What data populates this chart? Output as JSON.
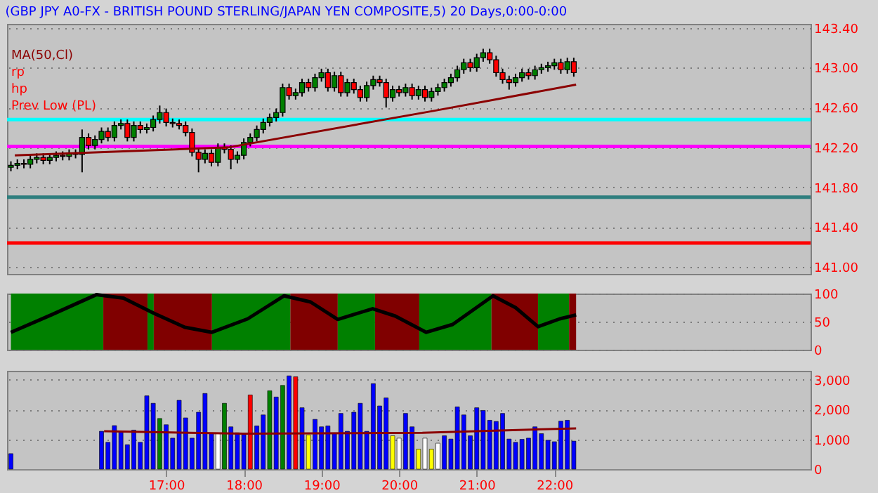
{
  "chart_data": [
    {
      "type": "candlestick",
      "title": "(GBP JPY A0-FX - BRITISH POUND STERLING/JAPAN YEN COMPOSITE,5) 20 Days,0:00-0:00",
      "x": [
        15,
        15.083,
        15.167,
        15.25,
        15.333,
        15.417,
        15.5,
        15.583,
        15.667,
        15.75,
        15.833,
        15.917,
        16,
        16.083,
        16.167,
        16.25,
        16.333,
        16.417,
        16.5,
        16.583,
        16.667,
        16.75,
        16.833,
        16.917,
        17,
        17.083,
        17.167,
        17.25,
        17.333,
        17.417,
        17.5,
        17.583,
        17.667,
        17.75,
        17.833,
        17.917,
        18,
        18.083,
        18.167,
        18.25,
        18.333,
        18.417,
        18.5,
        18.583,
        18.667,
        18.75,
        18.833,
        18.917,
        19,
        19.083,
        19.167,
        19.25,
        19.333,
        19.417,
        19.5,
        19.583,
        19.667,
        19.75,
        19.833,
        19.917,
        20,
        20.083,
        20.167,
        20.25,
        20.333,
        20.417,
        20.5,
        20.583,
        20.667,
        20.75,
        20.833,
        20.917,
        21,
        21.083,
        21.167,
        21.25,
        21.333,
        21.417,
        21.5,
        21.583,
        21.667,
        21.75,
        21.833,
        21.917,
        22,
        22.083,
        22.167,
        22.25
      ],
      "ohlc": [
        [
          142.0,
          142.06,
          141.96,
          142.02
        ],
        [
          142.02,
          142.08,
          141.98,
          142.04
        ],
        [
          142.04,
          142.08,
          141.99,
          142.03
        ],
        [
          142.03,
          142.12,
          141.99,
          142.08
        ],
        [
          142.08,
          142.14,
          142.04,
          142.1
        ],
        [
          142.1,
          142.14,
          142.03,
          142.07
        ],
        [
          142.07,
          142.14,
          142.03,
          142.1
        ],
        [
          142.1,
          142.16,
          142.06,
          142.12
        ],
        [
          142.12,
          142.16,
          142.07,
          142.11
        ],
        [
          142.11,
          142.18,
          142.07,
          142.14
        ],
        [
          142.14,
          142.18,
          142.09,
          142.13
        ],
        [
          142.13,
          142.38,
          141.95,
          142.3
        ],
        [
          142.3,
          142.34,
          142.18,
          142.22
        ],
        [
          142.22,
          142.32,
          142.18,
          142.28
        ],
        [
          142.28,
          142.4,
          142.24,
          142.36
        ],
        [
          142.36,
          142.4,
          142.26,
          142.3
        ],
        [
          142.3,
          142.46,
          142.26,
          142.42
        ],
        [
          142.42,
          142.48,
          142.38,
          142.44
        ],
        [
          142.44,
          142.48,
          142.26,
          142.3
        ],
        [
          142.3,
          142.46,
          142.26,
          142.42
        ],
        [
          142.42,
          142.46,
          142.34,
          142.38
        ],
        [
          142.38,
          142.44,
          142.34,
          142.4
        ],
        [
          142.4,
          142.52,
          142.36,
          142.48
        ],
        [
          142.48,
          142.62,
          142.44,
          142.55
        ],
        [
          142.55,
          142.59,
          142.41,
          142.45
        ],
        [
          142.45,
          142.49,
          142.4,
          142.44
        ],
        [
          142.44,
          142.48,
          142.38,
          142.42
        ],
        [
          142.42,
          142.46,
          142.31,
          142.35
        ],
        [
          142.35,
          142.39,
          142.11,
          142.15
        ],
        [
          142.15,
          142.19,
          141.95,
          142.08
        ],
        [
          142.08,
          142.18,
          142.04,
          142.14
        ],
        [
          142.14,
          142.18,
          142.01,
          142.05
        ],
        [
          142.05,
          142.24,
          142.01,
          142.2
        ],
        [
          142.2,
          142.24,
          142.14,
          142.18
        ],
        [
          142.18,
          142.22,
          141.98,
          142.08
        ],
        [
          142.08,
          142.16,
          142.04,
          142.12
        ],
        [
          142.12,
          142.29,
          142.08,
          142.25
        ],
        [
          142.25,
          142.34,
          142.21,
          142.3
        ],
        [
          142.3,
          142.42,
          142.26,
          142.38
        ],
        [
          142.38,
          142.49,
          142.34,
          142.45
        ],
        [
          142.45,
          142.54,
          142.41,
          142.5
        ],
        [
          142.5,
          142.59,
          142.46,
          142.55
        ],
        [
          142.55,
          142.84,
          142.51,
          142.8
        ],
        [
          142.8,
          142.84,
          142.68,
          142.72
        ],
        [
          142.72,
          142.79,
          142.68,
          142.75
        ],
        [
          142.75,
          142.89,
          142.71,
          142.85
        ],
        [
          142.85,
          142.89,
          142.76,
          142.8
        ],
        [
          142.8,
          142.94,
          142.76,
          142.9
        ],
        [
          142.9,
          142.99,
          142.86,
          142.95
        ],
        [
          142.95,
          142.99,
          142.76,
          142.8
        ],
        [
          142.8,
          142.96,
          142.76,
          142.92
        ],
        [
          142.92,
          142.96,
          142.71,
          142.75
        ],
        [
          142.75,
          142.89,
          142.71,
          142.85
        ],
        [
          142.85,
          142.89,
          142.74,
          142.78
        ],
        [
          142.78,
          142.82,
          142.66,
          142.7
        ],
        [
          142.7,
          142.86,
          142.66,
          142.82
        ],
        [
          142.82,
          142.92,
          142.78,
          142.88
        ],
        [
          142.88,
          142.92,
          142.81,
          142.85
        ],
        [
          142.85,
          142.89,
          142.6,
          142.7
        ],
        [
          142.7,
          142.82,
          142.66,
          142.78
        ],
        [
          142.78,
          142.82,
          142.71,
          142.75
        ],
        [
          142.75,
          142.84,
          142.71,
          142.8
        ],
        [
          142.8,
          142.84,
          142.68,
          142.72
        ],
        [
          142.72,
          142.82,
          142.68,
          142.78
        ],
        [
          142.78,
          142.82,
          142.66,
          142.7
        ],
        [
          142.7,
          142.8,
          142.66,
          142.76
        ],
        [
          142.76,
          142.84,
          142.72,
          142.8
        ],
        [
          142.8,
          142.89,
          142.76,
          142.85
        ],
        [
          142.85,
          142.94,
          142.81,
          142.9
        ],
        [
          142.9,
          143.02,
          142.86,
          142.98
        ],
        [
          142.98,
          143.09,
          142.94,
          143.05
        ],
        [
          143.05,
          143.09,
          142.96,
          143.0
        ],
        [
          143.0,
          143.14,
          142.96,
          143.1
        ],
        [
          143.1,
          143.19,
          143.06,
          143.15
        ],
        [
          143.15,
          143.19,
          143.04,
          143.08
        ],
        [
          143.08,
          143.12,
          142.91,
          142.95
        ],
        [
          142.95,
          142.99,
          142.84,
          142.88
        ],
        [
          142.88,
          142.92,
          142.78,
          142.85
        ],
        [
          142.85,
          142.94,
          142.81,
          142.9
        ],
        [
          142.9,
          142.99,
          142.86,
          142.95
        ],
        [
          142.95,
          142.99,
          142.88,
          142.92
        ],
        [
          142.92,
          143.02,
          142.88,
          142.98
        ],
        [
          142.98,
          143.04,
          142.94,
          143.0
        ],
        [
          143.0,
          143.06,
          142.96,
          143.02
        ],
        [
          143.02,
          143.09,
          142.98,
          143.05
        ],
        [
          143.05,
          143.09,
          142.94,
          142.98
        ],
        [
          142.98,
          143.1,
          142.94,
          143.06
        ],
        [
          143.06,
          143.1,
          142.91,
          142.95
        ]
      ],
      "colors": [
        "#008000",
        "#008000",
        "#ff0000",
        "#008000",
        "#008000",
        "#ff0000",
        "#008000",
        "#008000",
        "#ff0000",
        "#008000",
        "#ff0000",
        "#008000",
        "#ff0000",
        "#008000",
        "#008000",
        "#ff0000",
        "#008000",
        "#008000",
        "#ff0000",
        "#008000",
        "#ff0000",
        "#008000",
        "#008000",
        "#008000",
        "#ff0000",
        "#ff0000",
        "#ff0000",
        "#ff0000",
        "#ff0000",
        "#ff0000",
        "#008000",
        "#ff0000",
        "#008000",
        "#ff0000",
        "#ff0000",
        "#008000",
        "#008000",
        "#008000",
        "#008000",
        "#008000",
        "#008000",
        "#008000",
        "#008000",
        "#ff0000",
        "#008000",
        "#008000",
        "#ff0000",
        "#008000",
        "#008000",
        "#ff0000",
        "#008000",
        "#ff0000",
        "#008000",
        "#ff0000",
        "#ff0000",
        "#008000",
        "#008000",
        "#ff0000",
        "#ff0000",
        "#008000",
        "#ff0000",
        "#008000",
        "#ff0000",
        "#008000",
        "#ff0000",
        "#008000",
        "#008000",
        "#008000",
        "#008000",
        "#008000",
        "#008000",
        "#ff0000",
        "#008000",
        "#008000",
        "#ff0000",
        "#ff0000",
        "#ff0000",
        "#ff0000",
        "#008000",
        "#008000",
        "#ff0000",
        "#008000",
        "#008000",
        "#008000",
        "#008000",
        "#ff0000",
        "#008000",
        "#ff0000"
      ],
      "series": [
        {
          "type": "line",
          "name": "MA(50,Cl)",
          "color": "#8b0000",
          "x": [
            15.05,
            17.8,
            20.47,
            22.28
          ],
          "values": [
            142.12,
            142.2,
            142.57,
            142.83
          ]
        }
      ],
      "ref_lines": [
        {
          "axis": "y",
          "value": 142.48,
          "color": "#00ffff"
        },
        {
          "axis": "y",
          "value": 142.21,
          "color": "#ff00ff"
        },
        {
          "axis": "y",
          "value": 141.7,
          "color": "#2f7f7f"
        },
        {
          "axis": "y",
          "value": 141.24,
          "color": "#ff0000"
        }
      ],
      "annotations": [
        "rp",
        "hp",
        "Prev Low (PL)"
      ],
      "xlim": [
        14.95,
        25.3
      ],
      "ylim": [
        140.93,
        143.44
      ],
      "yticks": [
        {
          "value": 141,
          "label": "141.00"
        },
        {
          "value": 141.4,
          "label": "141.40"
        },
        {
          "value": 141.8,
          "label": "141.80"
        },
        {
          "value": 142.2,
          "label": "142.20"
        },
        {
          "value": 142.6,
          "label": "142.60"
        },
        {
          "value": 143,
          "label": "143.00"
        },
        {
          "value": 143.4,
          "label": "143.40"
        }
      ],
      "grid": "y",
      "tick_labels": "y"
    },
    {
      "type": "line",
      "series": [
        {
          "color": "#000000",
          "x": [
            15.0,
            15.52,
            16.1,
            16.45,
            16.84,
            17.24,
            17.59,
            18.05,
            18.52,
            18.86,
            19.21,
            19.66,
            19.95,
            20.35,
            20.69,
            21.21,
            21.5,
            21.79,
            22.07,
            22.28
          ],
          "values": [
            31,
            62,
            98,
            92,
            65,
            40,
            31,
            55,
            96,
            85,
            54,
            73,
            60,
            31,
            45,
            96,
            75,
            41,
            55,
            62
          ]
        }
      ],
      "bands": [
        {
          "axis": "x",
          "from": 15.0,
          "to": 16.19,
          "color": "#008000"
        },
        {
          "axis": "x",
          "from": 16.19,
          "to": 16.76,
          "color": "#800000"
        },
        {
          "axis": "x",
          "from": 16.76,
          "to": 16.84,
          "color": "#008000"
        },
        {
          "axis": "x",
          "from": 16.84,
          "to": 17.59,
          "color": "#800000"
        },
        {
          "axis": "x",
          "from": 17.59,
          "to": 18.6,
          "color": "#008000"
        },
        {
          "axis": "x",
          "from": 18.6,
          "to": 19.21,
          "color": "#800000"
        },
        {
          "axis": "x",
          "from": 19.21,
          "to": 19.69,
          "color": "#008000"
        },
        {
          "axis": "x",
          "from": 19.69,
          "to": 20.26,
          "color": "#800000"
        },
        {
          "axis": "x",
          "from": 20.26,
          "to": 21.19,
          "color": "#008000"
        },
        {
          "axis": "x",
          "from": 21.19,
          "to": 21.79,
          "color": "#800000"
        },
        {
          "axis": "x",
          "from": 21.79,
          "to": 22.19,
          "color": "#008000"
        },
        {
          "axis": "x",
          "from": 22.19,
          "to": 22.28,
          "color": "#800000"
        }
      ],
      "xlim": [
        14.95,
        25.3
      ],
      "ylim": [
        0,
        100
      ],
      "yticks": [
        0,
        50,
        100
      ],
      "grid": "y",
      "tick_labels": "y"
    },
    {
      "type": "bar",
      "x": [
        15,
        15.083,
        15.167,
        15.25,
        15.333,
        15.417,
        15.5,
        15.583,
        15.667,
        15.75,
        15.833,
        15.917,
        16,
        16.083,
        16.167,
        16.25,
        16.333,
        16.417,
        16.5,
        16.583,
        16.667,
        16.75,
        16.833,
        16.917,
        17,
        17.083,
        17.167,
        17.25,
        17.333,
        17.417,
        17.5,
        17.583,
        17.667,
        17.75,
        17.833,
        17.917,
        18,
        18.083,
        18.167,
        18.25,
        18.333,
        18.417,
        18.5,
        18.583,
        18.667,
        18.75,
        18.833,
        18.917,
        19,
        19.083,
        19.167,
        19.25,
        19.333,
        19.417,
        19.5,
        19.583,
        19.667,
        19.75,
        19.833,
        19.917,
        20,
        20.083,
        20.167,
        20.25,
        20.333,
        20.417,
        20.5,
        20.583,
        20.667,
        20.75,
        20.833,
        20.917,
        21,
        21.083,
        21.167,
        21.25,
        21.333,
        21.417,
        21.5,
        21.583,
        21.667,
        21.75,
        21.833,
        21.917,
        22,
        22.083,
        22.167,
        22.25
      ],
      "series": [
        {
          "type": "bar",
          "values": [
            520,
            null,
            null,
            null,
            null,
            null,
            null,
            null,
            null,
            null,
            null,
            null,
            null,
            null,
            1270,
            900,
            1460,
            1270,
            820,
            1310,
            900,
            2460,
            2210,
            1700,
            1490,
            1040,
            2310,
            1720,
            1040,
            1910,
            2540,
            1190,
            1190,
            2210,
            1420,
            1220,
            1160,
            2490,
            1450,
            1820,
            2630,
            2420,
            2810,
            3130,
            3100,
            2060,
            1150,
            1670,
            1420,
            1450,
            1190,
            1870,
            1270,
            1910,
            2210,
            1270,
            2870,
            2120,
            2390,
            1120,
            1040,
            1870,
            1420,
            670,
            1040,
            670,
            870,
            1120,
            1010,
            2090,
            1820,
            1120,
            2060,
            1970,
            1640,
            1600,
            1870,
            1010,
            900,
            1000,
            1040,
            1420,
            1190,
            970,
            920,
            1610,
            1640,
            940
          ],
          "colors": [
            "#0000ff",
            "#0000ff",
            "#0000ff",
            "#0000ff",
            "#0000ff",
            "#0000ff",
            "#0000ff",
            "#0000ff",
            "#0000ff",
            "#0000ff",
            "#0000ff",
            "#0000ff",
            "#0000ff",
            "#0000ff",
            "#0000ff",
            "#0000ff",
            "#0000ff",
            "#0000ff",
            "#0000ff",
            "#0000ff",
            "#0000ff",
            "#0000ff",
            "#0000ff",
            "#008000",
            "#0000ff",
            "#0000ff",
            "#0000ff",
            "#0000ff",
            "#0000ff",
            "#0000ff",
            "#0000ff",
            "#0000ff",
            "#ffffff",
            "#008000",
            "#0000ff",
            "#0000ff",
            "#0000ff",
            "#ff0000",
            "#0000ff",
            "#0000ff",
            "#008000",
            "#0000ff",
            "#008000",
            "#0000ff",
            "#ff0000",
            "#0000ff",
            "#ffff00",
            "#0000ff",
            "#0000ff",
            "#0000ff",
            "#0000ff",
            "#0000ff",
            "#0000ff",
            "#0000ff",
            "#0000ff",
            "#0000ff",
            "#0000ff",
            "#0000ff",
            "#0000ff",
            "#ffff00",
            "#ffffff",
            "#0000ff",
            "#0000ff",
            "#ffff00",
            "#ffffff",
            "#ffff00",
            "#ffffff",
            "#0000ff",
            "#0000ff",
            "#0000ff",
            "#0000ff",
            "#0000ff",
            "#0000ff",
            "#0000ff",
            "#0000ff",
            "#0000ff",
            "#0000ff",
            "#0000ff",
            "#0000ff",
            "#0000ff",
            "#0000ff",
            "#0000ff",
            "#0000ff",
            "#0000ff",
            "#0000ff",
            "#0000ff",
            "#0000ff",
            "#0000ff"
          ]
        },
        {
          "type": "line",
          "color": "#8b0000",
          "x": [
            16.2,
            18.0,
            20.3,
            22.28
          ],
          "values": [
            1270,
            1190,
            1220,
            1370
          ]
        }
      ],
      "xlim": [
        14.95,
        25.3
      ],
      "xticks": [
        {
          "value": 17,
          "label": "17:00"
        },
        {
          "value": 18,
          "label": "18:00"
        },
        {
          "value": 19,
          "label": "19:00"
        },
        {
          "value": 20,
          "label": "20:00"
        },
        {
          "value": 21,
          "label": "21:00"
        },
        {
          "value": 22,
          "label": "22:00"
        }
      ],
      "ylim": [
        0,
        3300
      ],
      "yticks": [
        0,
        {
          "value": 1000,
          "label": "1,000"
        },
        {
          "value": 2000,
          "label": "2,000"
        },
        {
          "value": 3000,
          "label": "3,000"
        }
      ],
      "grid": "y"
    }
  ]
}
